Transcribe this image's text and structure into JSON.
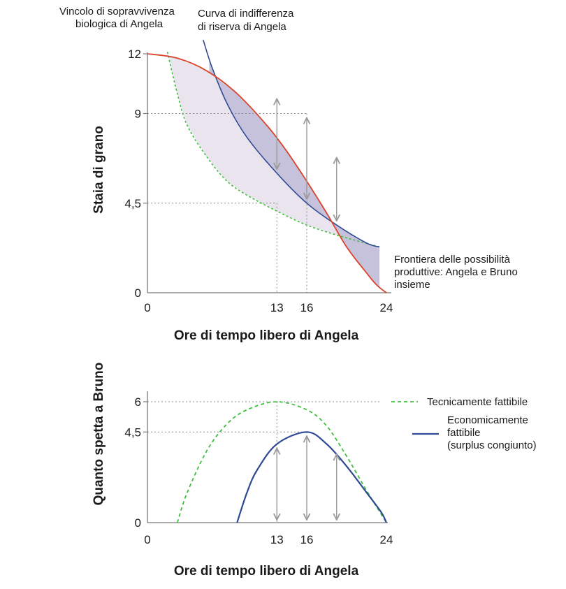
{
  "chart_data": [
    {
      "type": "line",
      "xlabel": "Ore di tempo libero di Angela",
      "ylabel": "Staia di grano",
      "xlim": [
        0,
        24
      ],
      "ylim": [
        0,
        12
      ],
      "x_ticks": [
        0,
        13,
        16,
        24
      ],
      "x_tick_labels": [
        "0",
        "13",
        "16",
        "24"
      ],
      "y_ticks": [
        0,
        4.5,
        9,
        12
      ],
      "y_tick_labels": [
        "0",
        "4,5",
        "9",
        "12"
      ],
      "reference_lines": [
        {
          "x": 13,
          "y": 4.5
        },
        {
          "x": 16,
          "y": 9
        }
      ],
      "series": [
        {
          "name": "Frontiera delle possibilità produttive: Angela e Bruno insieme",
          "color": "#d9442b",
          "style": "solid",
          "points": [
            [
              0,
              12
            ],
            [
              3,
              11.78
            ],
            [
              6,
              11.13
            ],
            [
              9,
              10.0
            ],
            [
              12,
              8.4
            ],
            [
              14,
              7.1
            ],
            [
              16,
              5.6
            ],
            [
              18,
              4.0
            ],
            [
              20,
              2.3
            ],
            [
              22,
              1.0
            ],
            [
              23,
              0.4
            ],
            [
              24,
              0
            ]
          ]
        },
        {
          "name": "Curva di indifferenza di riserva di Angela",
          "color": "#2e4a94",
          "style": "solid",
          "points": [
            [
              5.6,
              12.7
            ],
            [
              6.5,
              11.3
            ],
            [
              8,
              9.5
            ],
            [
              10,
              7.8
            ],
            [
              13,
              6.0
            ],
            [
              16,
              4.5
            ],
            [
              19,
              3.4
            ],
            [
              22,
              2.5
            ],
            [
              23.3,
              2.3
            ]
          ]
        },
        {
          "name": "Vincolo di sopravvivenza biologica di Angela",
          "color": "#3fbf3f",
          "style": "dashed",
          "points": [
            [
              2,
              12.1
            ],
            [
              3,
              10.0
            ],
            [
              4,
              8.4
            ],
            [
              6,
              6.8
            ],
            [
              8,
              5.6
            ],
            [
              10,
              4.9
            ],
            [
              13,
              4.1
            ],
            [
              16,
              3.4
            ],
            [
              19,
              2.9
            ],
            [
              23.3,
              2.3
            ]
          ]
        }
      ],
      "arrows": [
        {
          "x": 13,
          "from": 6.0,
          "to": 9.95
        },
        {
          "x": 16,
          "from": 4.5,
          "to": 9.0
        },
        {
          "x": 19,
          "from": 3.4,
          "to": 7.0
        }
      ]
    },
    {
      "type": "line",
      "xlabel": "Ore di tempo libero di Angela",
      "ylabel": "Quanto spetta a Bruno",
      "xlim": [
        0,
        24
      ],
      "ylim": [
        0,
        6
      ],
      "x_ticks": [
        0,
        13,
        16,
        24
      ],
      "x_tick_labels": [
        "0",
        "13",
        "16",
        "24"
      ],
      "y_ticks": [
        0,
        4.5,
        6
      ],
      "y_tick_labels": [
        "0",
        "4,5",
        "6"
      ],
      "reference_lines": [
        {
          "y": 6,
          "x": 13
        },
        {
          "y": 4.5,
          "x": 16
        }
      ],
      "legend": "right",
      "series": [
        {
          "name": "Tecnicamente fattibile",
          "color": "#3fbf3f",
          "style": "dashed",
          "points": [
            [
              3,
              0
            ],
            [
              4,
              1.5
            ],
            [
              6,
              3.6
            ],
            [
              8,
              4.9
            ],
            [
              10,
              5.6
            ],
            [
              13,
              6.0
            ],
            [
              16,
              5.6
            ],
            [
              18,
              4.8
            ],
            [
              20,
              3.3
            ],
            [
              22,
              1.6
            ],
            [
              24,
              0
            ]
          ]
        },
        {
          "name": "Economicamente fattibile (surplus congiunto)",
          "color": "#2e4a94",
          "style": "solid",
          "points": [
            [
              9,
              0
            ],
            [
              10,
              1.5
            ],
            [
              11,
              2.6
            ],
            [
              13,
              3.9
            ],
            [
              16,
              4.5
            ],
            [
              18,
              3.9
            ],
            [
              20,
              2.8
            ],
            [
              22,
              1.5
            ],
            [
              23.5,
              0.5
            ],
            [
              24,
              0
            ]
          ]
        }
      ],
      "arrows": [
        {
          "x": 13,
          "from": 0,
          "to": 3.9
        },
        {
          "x": 16,
          "from": 0,
          "to": 4.5
        },
        {
          "x": 19,
          "from": 0,
          "to": 3.6
        }
      ]
    }
  ],
  "top_labels": {
    "survival_line1": "Vincolo di sopravvivenza",
    "survival_line2": "biologica di Angela",
    "indiff_line1": "Curva di indifferenza",
    "indiff_line2": "di riserva di Angela",
    "frontier_line1": "Frontiera delle possibilità",
    "frontier_line2": "produttive: Angela e Bruno",
    "frontier_line3": "insieme"
  },
  "legend": {
    "technical": "Tecnicamente fattibile",
    "economic_line1": "Economicamente",
    "economic_line2": "fattibile",
    "economic_line3": "(surplus congiunto)"
  },
  "colors": {
    "frontier": "#d9442b",
    "indifference": "#2e4a94",
    "survival": "#3fbf3f",
    "outer_fill": "#eae4ee",
    "inner_fill": "#c7c2dc",
    "arrow": "#9a9a9a",
    "axis": "#7a7a7a",
    "refline": "#8a8a8a"
  }
}
